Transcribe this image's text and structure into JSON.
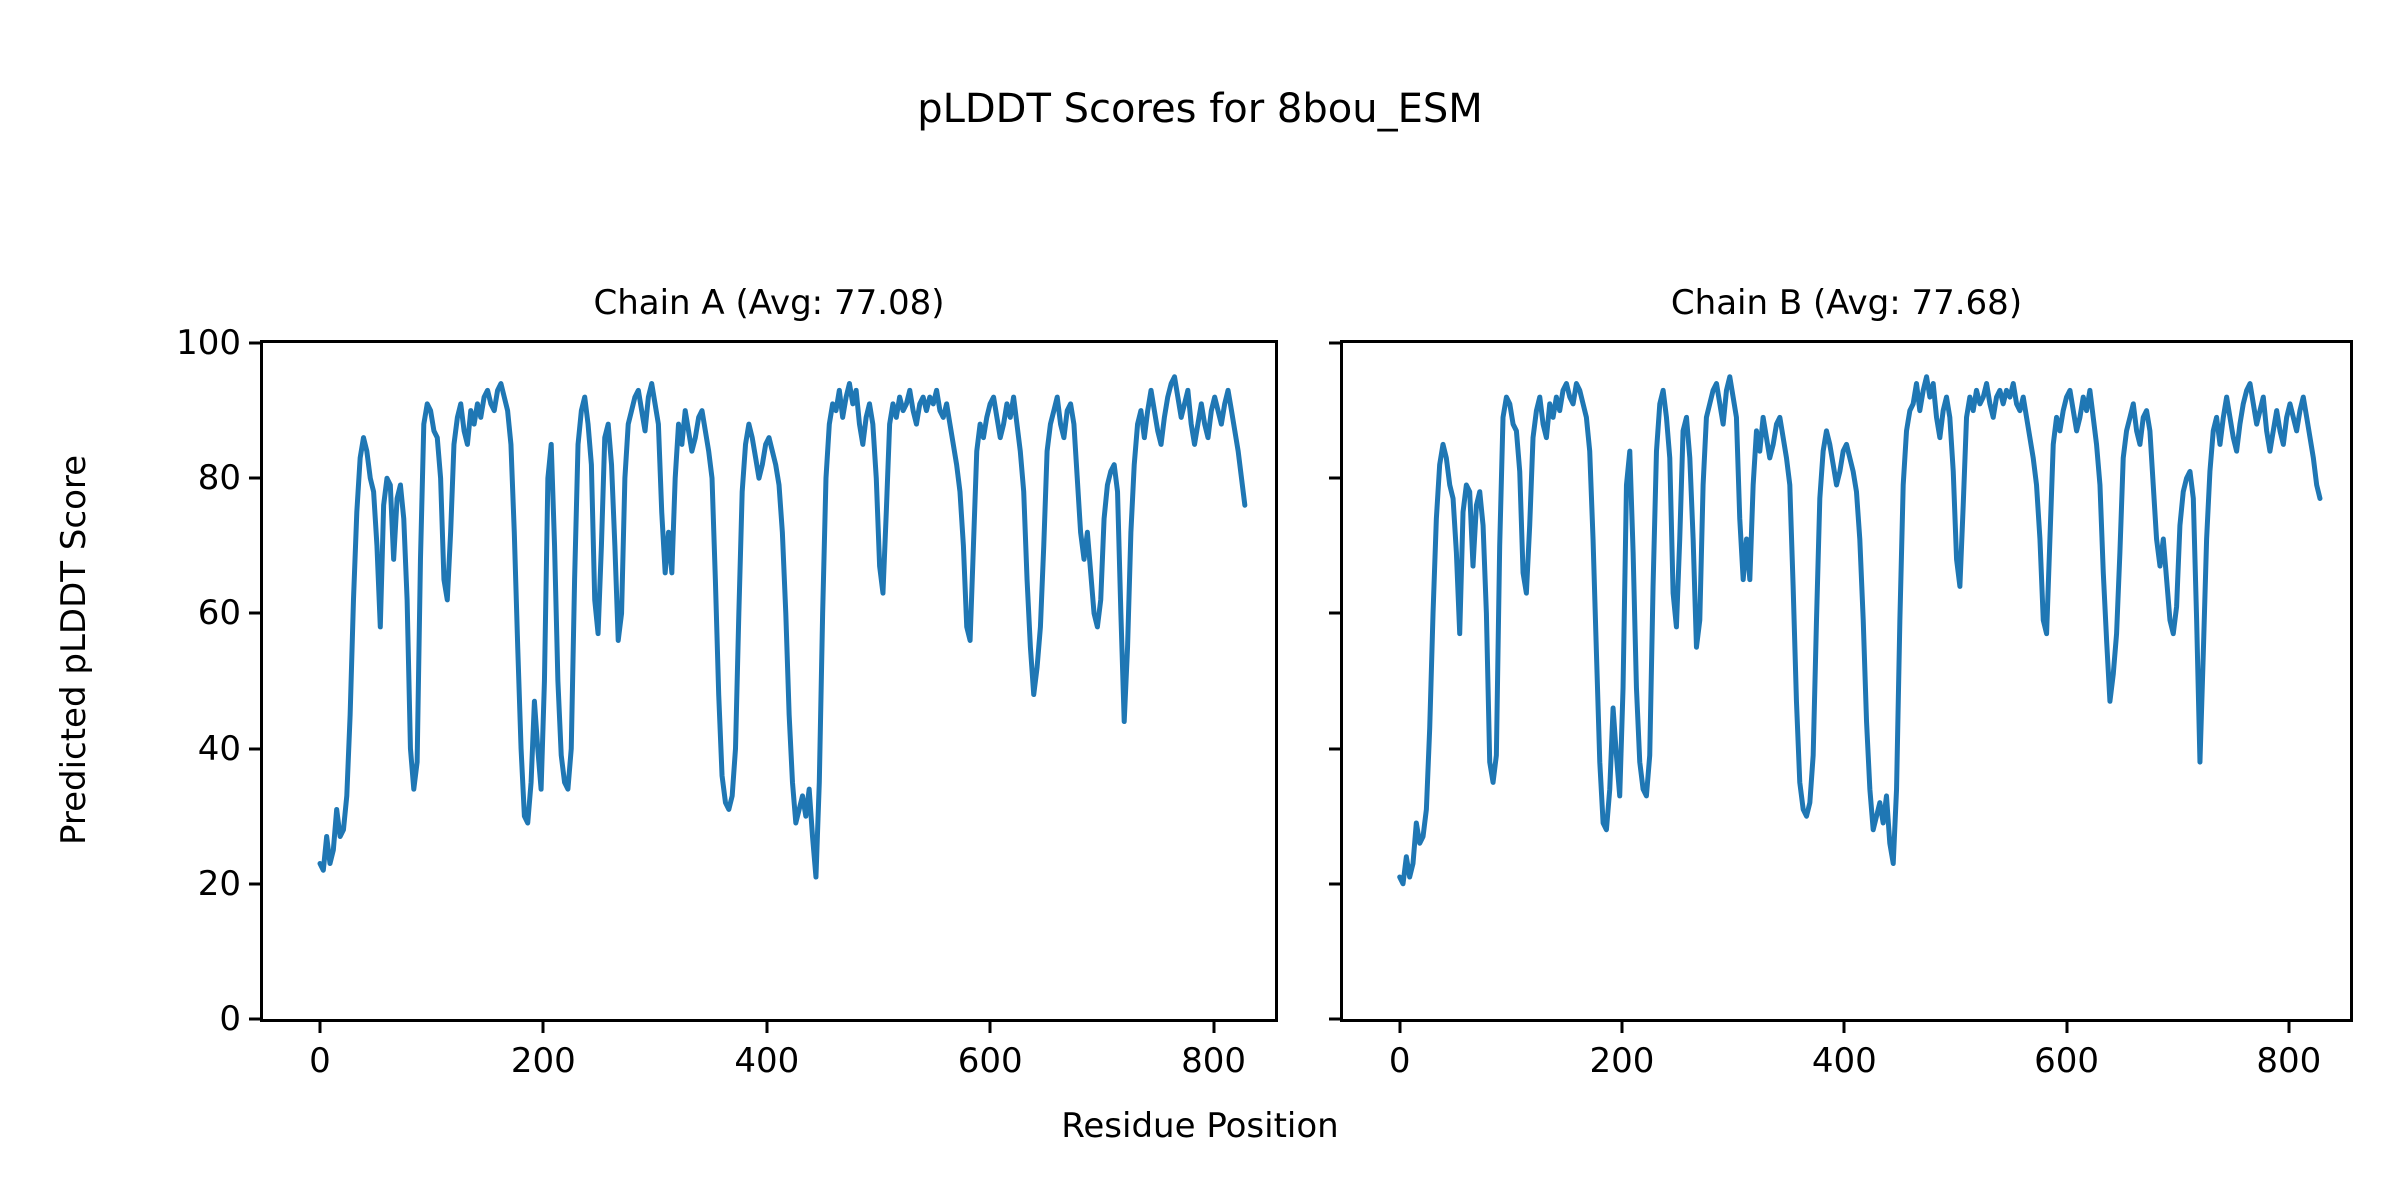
{
  "title": "pLDDT Scores for 8bou_ESM",
  "xlabel": "Residue Position",
  "ylabel": "Predicted pLDDT Score",
  "line_color": "#1f77b4",
  "chart_data": [
    {
      "type": "line",
      "title": "Chain A (Avg: 77.08)",
      "series_name": "Chain A pLDDT",
      "avg": 77.08,
      "xlim": [
        -51,
        855
      ],
      "ylim": [
        0,
        100
      ],
      "x_ticks": [
        0,
        200,
        400,
        600,
        800
      ],
      "y_ticks": [
        0,
        20,
        40,
        60,
        80,
        100
      ],
      "show_y_tick_labels": true,
      "grid": false,
      "x_start": 0,
      "x_step": 3,
      "values": [
        23,
        22,
        27,
        23,
        25,
        31,
        27,
        28,
        33,
        45,
        62,
        75,
        83,
        86,
        84,
        80,
        78,
        70,
        58,
        76,
        80,
        79,
        68,
        77,
        79,
        74,
        62,
        40,
        34,
        38,
        68,
        88,
        91,
        90,
        87,
        86,
        80,
        65,
        62,
        72,
        85,
        89,
        91,
        87,
        85,
        90,
        88,
        91,
        89,
        92,
        93,
        91,
        90,
        93,
        94,
        92,
        90,
        85,
        72,
        55,
        40,
        30,
        29,
        35,
        47,
        40,
        34,
        50,
        80,
        85,
        70,
        50,
        39,
        35,
        34,
        40,
        65,
        85,
        90,
        92,
        88,
        82,
        62,
        57,
        70,
        86,
        88,
        82,
        70,
        56,
        60,
        80,
        88,
        90,
        92,
        93,
        90,
        87,
        92,
        94,
        91,
        88,
        75,
        66,
        72,
        66,
        80,
        88,
        85,
        90,
        87,
        84,
        86,
        89,
        90,
        87,
        84,
        80,
        65,
        48,
        36,
        32,
        31,
        33,
        40,
        60,
        78,
        85,
        88,
        86,
        83,
        80,
        82,
        85,
        86,
        84,
        82,
        79,
        72,
        60,
        45,
        35,
        29,
        31,
        33,
        30,
        34,
        27,
        21,
        35,
        60,
        80,
        88,
        91,
        90,
        93,
        89,
        92,
        94,
        91,
        93,
        88,
        85,
        89,
        91,
        88,
        80,
        67,
        63,
        75,
        88,
        91,
        89,
        92,
        90,
        91,
        93,
        90,
        88,
        91,
        92,
        90,
        92,
        91,
        93,
        90,
        89,
        91,
        88,
        85,
        82,
        78,
        70,
        58,
        56,
        70,
        84,
        88,
        86,
        89,
        91,
        92,
        89,
        86,
        88,
        91,
        89,
        92,
        88,
        84,
        78,
        65,
        55,
        48,
        52,
        58,
        70,
        84,
        88,
        90,
        92,
        88,
        86,
        90,
        91,
        88,
        80,
        72,
        68,
        72,
        66,
        60,
        58,
        62,
        74,
        79,
        81,
        82,
        78,
        60,
        44,
        55,
        72,
        82,
        88,
        90,
        86,
        90,
        93,
        90,
        87,
        85,
        89,
        92,
        94,
        95,
        92,
        89,
        91,
        93,
        88,
        85,
        88,
        91,
        88,
        86,
        90,
        92,
        90,
        88,
        91,
        93,
        90,
        87,
        84,
        80,
        76
      ]
    },
    {
      "type": "line",
      "title": "Chain B (Avg: 77.68)",
      "series_name": "Chain B pLDDT",
      "avg": 77.68,
      "xlim": [
        -51,
        855
      ],
      "ylim": [
        0,
        100
      ],
      "x_ticks": [
        0,
        200,
        400,
        600,
        800
      ],
      "y_ticks": [
        0,
        20,
        40,
        60,
        80,
        100
      ],
      "show_y_tick_labels": false,
      "grid": false,
      "x_start": 0,
      "x_step": 3,
      "values": [
        21,
        20,
        24,
        21,
        23,
        29,
        26,
        27,
        31,
        43,
        60,
        74,
        82,
        85,
        83,
        79,
        77,
        69,
        57,
        75,
        79,
        78,
        67,
        76,
        78,
        73,
        60,
        38,
        35,
        39,
        70,
        89,
        92,
        91,
        88,
        87,
        81,
        66,
        63,
        73,
        86,
        90,
        92,
        88,
        86,
        91,
        89,
        92,
        90,
        93,
        94,
        92,
        91,
        94,
        93,
        91,
        89,
        84,
        71,
        54,
        38,
        29,
        28,
        34,
        46,
        39,
        33,
        49,
        79,
        84,
        69,
        49,
        38,
        34,
        33,
        39,
        64,
        84,
        91,
        93,
        89,
        83,
        63,
        58,
        71,
        87,
        89,
        83,
        71,
        55,
        59,
        79,
        89,
        91,
        93,
        94,
        91,
        88,
        93,
        95,
        92,
        89,
        74,
        65,
        71,
        65,
        79,
        87,
        84,
        89,
        86,
        83,
        85,
        88,
        89,
        86,
        83,
        79,
        64,
        47,
        35,
        31,
        30,
        32,
        39,
        59,
        77,
        84,
        87,
        85,
        82,
        79,
        81,
        84,
        85,
        83,
        81,
        78,
        71,
        59,
        44,
        34,
        28,
        30,
        32,
        29,
        33,
        26,
        23,
        34,
        59,
        79,
        87,
        90,
        91,
        94,
        90,
        93,
        95,
        92,
        94,
        89,
        86,
        90,
        92,
        89,
        81,
        68,
        64,
        76,
        89,
        92,
        90,
        93,
        91,
        92,
        94,
        91,
        89,
        92,
        93,
        91,
        93,
        92,
        94,
        91,
        90,
        92,
        89,
        86,
        83,
        79,
        71,
        59,
        57,
        71,
        85,
        89,
        87,
        90,
        92,
        93,
        90,
        87,
        89,
        92,
        90,
        93,
        89,
        85,
        79,
        66,
        56,
        47,
        51,
        57,
        69,
        83,
        87,
        89,
        91,
        87,
        85,
        89,
        90,
        87,
        79,
        71,
        67,
        71,
        65,
        59,
        57,
        61,
        73,
        78,
        80,
        81,
        77,
        59,
        38,
        54,
        71,
        81,
        87,
        89,
        85,
        89,
        92,
        89,
        86,
        84,
        88,
        91,
        93,
        94,
        91,
        88,
        90,
        92,
        87,
        84,
        87,
        90,
        87,
        85,
        89,
        91,
        89,
        87,
        90,
        92,
        89,
        86,
        83,
        79,
        77
      ]
    }
  ]
}
